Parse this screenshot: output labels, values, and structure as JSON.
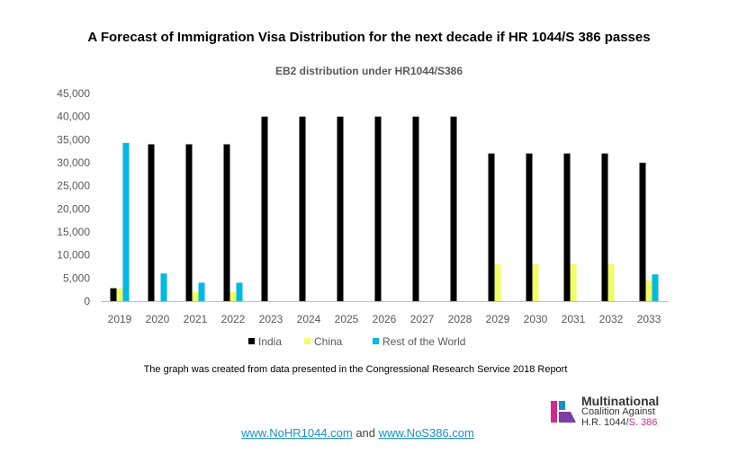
{
  "page_title": "A Forecast of Immigration Visa Distribution for the next decade if HR 1044/S 386 passes",
  "footnote": "The graph was created from data presented in the Congressional Research Service 2018 Report",
  "links": {
    "first": "www.NoHR1044.com",
    "middle": " and ",
    "second": "www.NoS386.com"
  },
  "logo": {
    "line1": "Multinational",
    "line2": "Coalition Against",
    "line3a": "H.R. 1044/",
    "line3b": "S. 386"
  },
  "colors": {
    "india": "#000000",
    "china": "#f0ff66",
    "row": "#00b8e6",
    "axis": "#bfbfbf"
  },
  "chart_data": {
    "type": "bar",
    "title": "EB2 distribution under HR1044/S386",
    "xlabel": "",
    "ylabel": "",
    "ylim": [
      0,
      45000
    ],
    "yticks": [
      0,
      5000,
      10000,
      15000,
      20000,
      25000,
      30000,
      35000,
      40000,
      45000
    ],
    "ytick_labels": [
      "0",
      "5,000",
      "10,000",
      "15,000",
      "20,000",
      "25,000",
      "30,000",
      "35,000",
      "40,000",
      "45,000"
    ],
    "categories": [
      "2019",
      "2020",
      "2021",
      "2022",
      "2023",
      "2024",
      "2025",
      "2026",
      "2027",
      "2028",
      "2029",
      "2030",
      "2031",
      "2032",
      "2033"
    ],
    "series": [
      {
        "name": "India",
        "values": [
          2800,
          34000,
          34000,
          34000,
          40000,
          40000,
          40000,
          40000,
          40000,
          40000,
          32000,
          32000,
          32000,
          32000,
          30000
        ]
      },
      {
        "name": "China",
        "values": [
          2800,
          0,
          2000,
          2000,
          0,
          0,
          0,
          0,
          0,
          0,
          8000,
          8000,
          8000,
          8000,
          4500
        ]
      },
      {
        "name": "Rest of the World",
        "values": [
          34300,
          6000,
          4000,
          4000,
          0,
          0,
          0,
          0,
          0,
          0,
          0,
          0,
          0,
          0,
          5800
        ]
      }
    ],
    "legend_position": "bottom"
  }
}
